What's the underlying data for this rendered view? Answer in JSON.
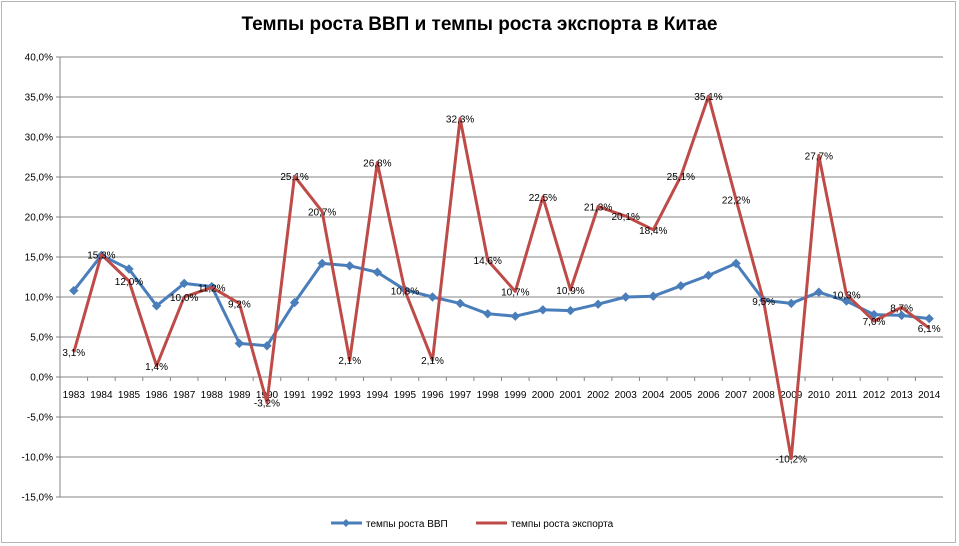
{
  "chart_data": {
    "type": "line",
    "title": "Темпы роста ВВП и темпы роста экспорта в Китае",
    "xlabel": "",
    "ylabel": "",
    "ylim": [
      -15,
      40
    ],
    "y_ticks": [
      "40,0%",
      "35,0%",
      "30,0%",
      "25,0%",
      "20,0%",
      "15,0%",
      "10,0%",
      "5,0%",
      "0,0%",
      "-5,0%",
      "-10,0%",
      "-15,0%"
    ],
    "y_tick_values": [
      40,
      35,
      30,
      25,
      20,
      15,
      10,
      5,
      0,
      -5,
      -10,
      -15
    ],
    "grid": true,
    "legend_position": "bottom",
    "categories": [
      "1983",
      "1984",
      "1985",
      "1986",
      "1987",
      "1988",
      "1989",
      "1990",
      "1991",
      "1992",
      "1993",
      "1994",
      "1995",
      "1996",
      "1997",
      "1998",
      "1999",
      "2000",
      "2001",
      "2002",
      "2003",
      "2004",
      "2005",
      "2006",
      "2007",
      "2008",
      "2009",
      "2010",
      "2011",
      "2012",
      "2013",
      "2014"
    ],
    "series": [
      {
        "name": "темпы роста ВВП",
        "color": "#4a7ebb",
        "marker": "diamond",
        "values": [
          10.8,
          15.2,
          13.5,
          8.9,
          11.7,
          11.3,
          4.2,
          3.9,
          9.3,
          14.2,
          13.9,
          13.1,
          10.9,
          10.0,
          9.2,
          7.9,
          7.6,
          8.4,
          8.3,
          9.1,
          10.0,
          10.1,
          11.4,
          12.7,
          14.2,
          9.6,
          9.2,
          10.6,
          9.5,
          7.8,
          7.7,
          7.3
        ]
      },
      {
        "name": "темпы роста экспорта",
        "color": "#be4b48",
        "marker": "none",
        "values": [
          3.1,
          15.3,
          12.0,
          1.4,
          10.0,
          11.2,
          9.2,
          -3.2,
          25.1,
          20.7,
          2.1,
          26.8,
          10.8,
          2.1,
          32.3,
          14.6,
          10.7,
          22.5,
          10.9,
          21.3,
          20.1,
          18.4,
          25.1,
          35.1,
          22.2,
          9.5,
          -10.2,
          27.7,
          10.3,
          7.0,
          8.7,
          6.1
        ],
        "labels": [
          "3,1%",
          "15,3%",
          "12,0%",
          "1,4%",
          "10,0%",
          "11,2%",
          "9,2%",
          "-3,2%",
          "25,1%",
          "20,7%",
          "2,1%",
          "26,8%",
          "10,8%",
          "2,1%",
          "32,3%",
          "14,6%",
          "10,7%",
          "22,5%",
          "10,9%",
          "21,3%",
          "20,1%",
          "18,4%",
          "25,1%",
          "35,1%",
          "22,2%",
          "9,5%",
          "-10,2%",
          "27,7%",
          "10,3%",
          "7,0%",
          "8,7%",
          "6,1%"
        ]
      }
    ]
  }
}
